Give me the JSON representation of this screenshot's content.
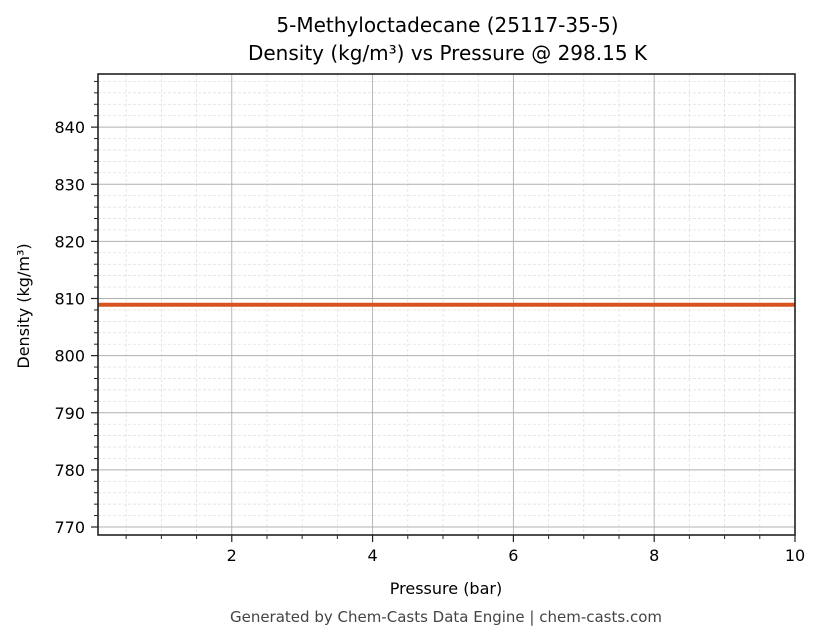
{
  "chart_data": {
    "type": "line",
    "title": "5-Methyloctadecane (25117-35-5)",
    "subtitle": "Density (kg/m³) vs Pressure @ 298.15 K",
    "xlabel": "Pressure (bar)",
    "ylabel": "Density (kg/m³)",
    "xlim": [
      0.1,
      10
    ],
    "ylim": [
      768.6,
      849.3
    ],
    "x_ticks": [
      2,
      4,
      6,
      8,
      10
    ],
    "x_tick_labels": [
      "2",
      "4",
      "6",
      "8",
      "10"
    ],
    "y_ticks": [
      770,
      780,
      790,
      800,
      810,
      820,
      830,
      840
    ],
    "y_tick_labels": [
      "770",
      "780",
      "790",
      "800",
      "810",
      "820",
      "830",
      "840"
    ],
    "grid": {
      "major": true,
      "minor": true
    },
    "legend": null,
    "series": [
      {
        "name": "Density",
        "color": "#d9531e",
        "x": [
          0.1,
          1,
          2,
          3,
          4,
          5,
          6,
          7,
          8,
          9,
          10
        ],
        "values": [
          808.9,
          808.9,
          808.9,
          808.9,
          808.9,
          808.9,
          808.9,
          808.9,
          808.9,
          808.9,
          808.9
        ]
      }
    ]
  },
  "title_line1": "5-Methyloctadecane (25117-35-5)",
  "title_line2": "Density (kg/m³) vs Pressure @ 298.15 K",
  "footer": "Generated by Chem-Casts Data Engine | chem-casts.com"
}
